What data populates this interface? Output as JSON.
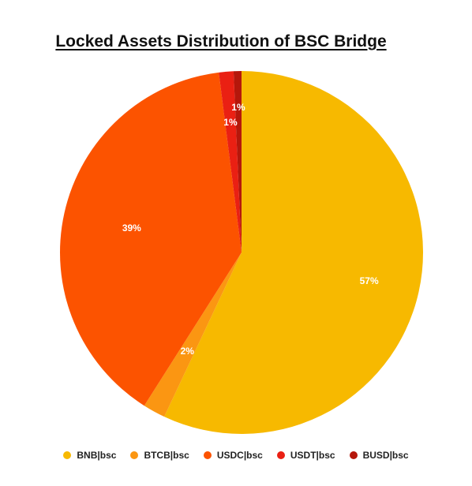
{
  "chart_data": {
    "type": "pie",
    "title": "Locked Assets Distribution of BSC Bridge",
    "legend_position": "bottom",
    "slices": [
      {
        "name": "BNB|bsc",
        "value": 57,
        "label": "57%",
        "color": "#f7b900"
      },
      {
        "name": "BTCB|bsc",
        "value": 2,
        "label": "2%",
        "color": "#fb9612"
      },
      {
        "name": "USDC|bsc",
        "value": 39,
        "label": "39%",
        "color": "#fc5300"
      },
      {
        "name": "USDT|bsc",
        "value": 1.3,
        "label": "1%",
        "color": "#ea2013"
      },
      {
        "name": "BUSD|bsc",
        "value": 0.7,
        "label": "1%",
        "color": "#b5170b"
      }
    ]
  }
}
